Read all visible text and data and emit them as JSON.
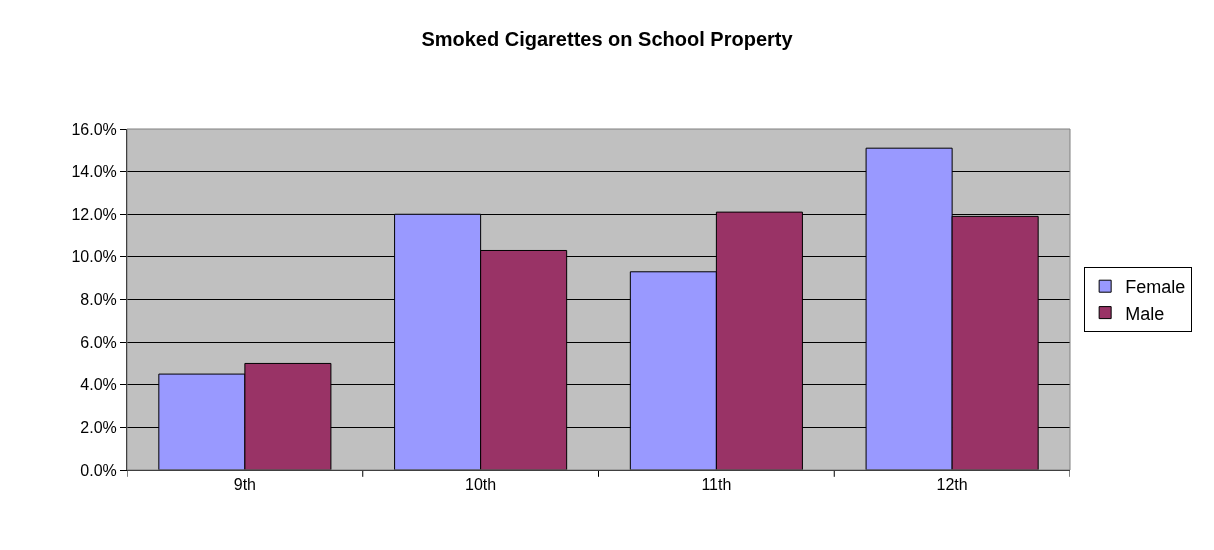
{
  "chart_data": {
    "type": "bar",
    "title": "Smoked Cigarettes on School Property",
    "categories": [
      "9th",
      "10th",
      "11th",
      "12th"
    ],
    "series": [
      {
        "name": "Female",
        "color": "#9999ff",
        "values": [
          4.5,
          12.0,
          9.3,
          15.1
        ]
      },
      {
        "name": "Male",
        "color": "#993366",
        "values": [
          5.0,
          10.3,
          12.1,
          11.9
        ]
      }
    ],
    "ylim": [
      0,
      16
    ],
    "yticks": [
      {
        "value": 0,
        "label": "0.0%"
      },
      {
        "value": 2,
        "label": "2.0%"
      },
      {
        "value": 4,
        "label": "4.0%"
      },
      {
        "value": 6,
        "label": "6.0%"
      },
      {
        "value": 8,
        "label": "8.0%"
      },
      {
        "value": 10,
        "label": "10.0%"
      },
      {
        "value": 12,
        "label": "12.0%"
      },
      {
        "value": 14,
        "label": "14.0%"
      },
      {
        "value": 16,
        "label": "16.0%"
      }
    ],
    "grid": "y",
    "legend": "right"
  }
}
